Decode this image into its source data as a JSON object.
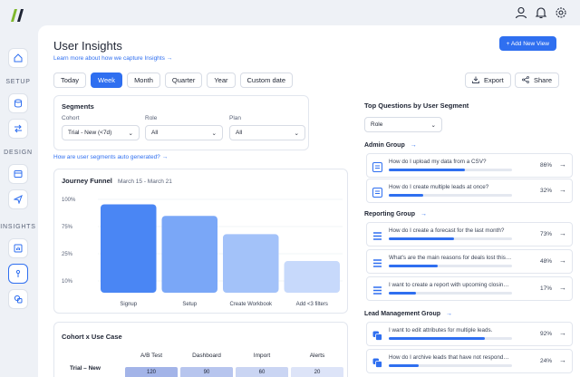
{
  "header": {
    "title": "User Insights",
    "learn_link": "Learn more about how we capture Insights  →",
    "add_button": "+ Add New View"
  },
  "rail": {
    "sections": [
      "SETUP",
      "DESIGN",
      "INSIGHTS"
    ]
  },
  "tabs": [
    "Today",
    "Week",
    "Month",
    "Quarter",
    "Year",
    "Custom date"
  ],
  "active_tab": "Week",
  "actions": {
    "export": "Export",
    "share": "Share"
  },
  "segments": {
    "title": "Segments",
    "cohort_label": "Cohort",
    "cohort_value": "Trial - New (<7d)",
    "role_label": "Role",
    "role_value": "All",
    "plan_label": "Plan",
    "plan_value": "All",
    "link": "How are user segments auto generated?  →"
  },
  "funnel": {
    "title": "Journey Funnel",
    "date_range": "March 15 - March 21"
  },
  "chart_data": {
    "type": "bar",
    "title": "Journey Funnel",
    "categories": [
      "Signup",
      "Setup",
      "Create Workbook",
      "Add <3 filters"
    ],
    "values": [
      92,
      80,
      61,
      33
    ],
    "yticks": [
      "100%",
      "75%",
      "25%",
      "10%"
    ],
    "ylim": [
      0,
      100
    ],
    "colors": [
      "#4a86f4",
      "#7aa7f7",
      "#a3c2f9",
      "#c7d9fb"
    ]
  },
  "cohort": {
    "title": "Cohort x Use Case",
    "columns": [
      "A/B Test",
      "Dashboard",
      "Import",
      "Alerts"
    ],
    "row_label": "Trial – New",
    "values": [
      "120",
      "90",
      "60",
      "20"
    ]
  },
  "questions": {
    "title": "Top Questions by User Segment",
    "filter": "Role",
    "groups": [
      {
        "name": "Admin Group",
        "items": [
          {
            "text": "How do I upload my data from a CSV?",
            "pct": "86%",
            "value": 0.62
          },
          {
            "text": "How do I create multiple leads at once?",
            "pct": "32%",
            "value": 0.28
          }
        ]
      },
      {
        "name": "Reporting Group",
        "items": [
          {
            "text": "How do I create a forecast for the last month?",
            "pct": "73%",
            "value": 0.53
          },
          {
            "text": "What's are the main reasons for deals lost this year?",
            "pct": "48%",
            "value": 0.4
          },
          {
            "text": "I want to create a report with upcoming closings and t...",
            "pct": "17%",
            "value": 0.22
          }
        ]
      },
      {
        "name": "Lead Management Group",
        "items": [
          {
            "text": "I want to edit attributes for multiple leads.",
            "pct": "92%",
            "value": 0.78
          },
          {
            "text": "How do I archive leads that have not responded for a...",
            "pct": "24%",
            "value": 0.24
          }
        ]
      }
    ]
  }
}
